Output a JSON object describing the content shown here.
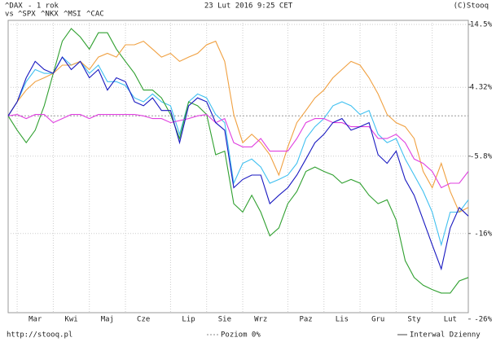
{
  "chart_data": {
    "type": "line",
    "period": "- 1 rok",
    "compare_label": "vs",
    "date": "23 Lut 2016 9:25 CET",
    "copyright": "(C)Stooq",
    "source": "http://stooq.pl",
    "zero_line_label": "Poziom 0%",
    "interval_label": "Interwal Dzienny",
    "log_scale": true,
    "grid": true,
    "zero_line": true,
    "categories": [
      null,
      null,
      null,
      "Mar",
      null,
      null,
      null,
      "Kwi",
      null,
      null,
      null,
      "Maj",
      null,
      null,
      null,
      "Cze",
      null,
      null,
      null,
      null,
      "Lip",
      null,
      null,
      null,
      "Sie",
      null,
      null,
      null,
      "Wrz",
      null,
      null,
      null,
      null,
      "Paz",
      null,
      null,
      null,
      "Lis",
      null,
      null,
      null,
      "Gru",
      null,
      null,
      null,
      "Sty",
      null,
      null,
      null,
      "Lut",
      null,
      null
    ],
    "ylim": [
      -25.3,
      15.2
    ],
    "yticks": [
      {
        "value": 14.5,
        "label": "14.5%"
      },
      {
        "value": 4.32,
        "label": "4.32%"
      },
      {
        "value": -5.8,
        "label": "-5.8%"
      },
      {
        "value": -16,
        "label": "-16%"
      },
      {
        "value": -26,
        "label": "-26%"
      }
    ],
    "series": [
      {
        "name": "^DAX",
        "color": "#1818c0",
        "values": [
          0,
          2.1,
          5.8,
          8.4,
          7.1,
          6.5,
          9.1,
          7.1,
          8.4,
          5.8,
          7.1,
          3.9,
          5.8,
          5.2,
          2.1,
          1.5,
          2.7,
          0.8,
          0.8,
          -3.9,
          1.5,
          2.7,
          2.1,
          -1.0,
          -2.1,
          -10.1,
          -9.0,
          -8.4,
          -8.4,
          -12.2,
          -11.1,
          -10.1,
          -8.4,
          -6.2,
          -3.9,
          -2.7,
          -1.0,
          -0.4,
          -2.1,
          -1.6,
          -1.0,
          -5.6,
          -6.8,
          -5.1,
          -9.0,
          -11.1,
          -14.3,
          -17.4,
          -20.3,
          -15.3,
          -12.7,
          -13.8
        ]
      },
      {
        "name": "^SPX",
        "color": "#e040e0",
        "values": [
          0,
          0.2,
          -0.4,
          0.2,
          0.2,
          -1.0,
          -0.4,
          0.2,
          0.2,
          -0.4,
          0.2,
          0.2,
          0.2,
          0.2,
          0.2,
          0,
          -0.4,
          -0.4,
          -1.0,
          -0.7,
          -0.4,
          0,
          0.2,
          -1.0,
          -0.4,
          -3.9,
          -4.5,
          -4.5,
          -3.3,
          -5.1,
          -5.1,
          -5.1,
          -3.3,
          -1.0,
          -0.4,
          -0.4,
          -1.0,
          -1.0,
          -1.6,
          -1.6,
          -1.6,
          -3.3,
          -3.3,
          -2.7,
          -3.9,
          -6.2,
          -6.8,
          -7.9,
          -10.1,
          -9.5,
          -9.5,
          -7.9
        ]
      },
      {
        "name": "^NKX",
        "color": "#f0a040",
        "values": [
          0,
          2.1,
          3.9,
          5.2,
          5.8,
          6.5,
          7.8,
          7.8,
          8.4,
          7.1,
          9.1,
          9.7,
          9.1,
          11.1,
          11.1,
          11.7,
          10.4,
          9.1,
          9.7,
          8.4,
          9.1,
          9.7,
          11.1,
          11.7,
          8.4,
          0.2,
          -3.9,
          -2.7,
          -3.9,
          -5.6,
          -8.4,
          -4.5,
          -1.0,
          0.8,
          2.7,
          3.9,
          5.8,
          7.1,
          8.4,
          7.8,
          5.8,
          3.3,
          0.2,
          -1.0,
          -1.6,
          -3.3,
          -7.9,
          -10.1,
          -6.8,
          -10.6,
          -13.3,
          -12.7
        ]
      },
      {
        "name": "^MSI",
        "color": "#30a030",
        "values": [
          0,
          -2.1,
          -3.9,
          -2.1,
          1.5,
          6.5,
          11.7,
          13.8,
          12.4,
          10.4,
          13.1,
          13.1,
          10.4,
          8.4,
          6.5,
          3.9,
          3.9,
          2.7,
          0.2,
          -3.3,
          2.1,
          1.5,
          0.2,
          -5.6,
          -5.1,
          -12.2,
          -13.3,
          -11.1,
          -13.3,
          -16.3,
          -15.3,
          -12.2,
          -10.6,
          -7.9,
          -7.3,
          -7.9,
          -8.4,
          -9.5,
          -9.0,
          -9.5,
          -11.1,
          -12.2,
          -11.7,
          -14.3,
          -19.3,
          -21.3,
          -22.2,
          -22.7,
          -23.1,
          -23.1,
          -21.7,
          -21.3
        ]
      },
      {
        "name": "^CAC",
        "color": "#40c0f0",
        "values": [
          0,
          2.1,
          5.2,
          7.1,
          6.5,
          6.5,
          9.1,
          7.8,
          8.4,
          6.5,
          7.8,
          5.2,
          5.2,
          4.6,
          2.7,
          2.1,
          3.3,
          2.1,
          1.5,
          -2.7,
          2.1,
          3.3,
          2.7,
          0.2,
          -1.0,
          -9.5,
          -6.8,
          -6.2,
          -7.3,
          -9.5,
          -9.0,
          -8.4,
          -6.8,
          -3.3,
          -1.6,
          -0.4,
          1.5,
          2.1,
          1.5,
          0.2,
          0.8,
          -2.7,
          -3.9,
          -3.3,
          -6.2,
          -8.4,
          -10.6,
          -13.3,
          -17.4,
          -13.3,
          -13.3,
          -11.7
        ]
      }
    ]
  }
}
